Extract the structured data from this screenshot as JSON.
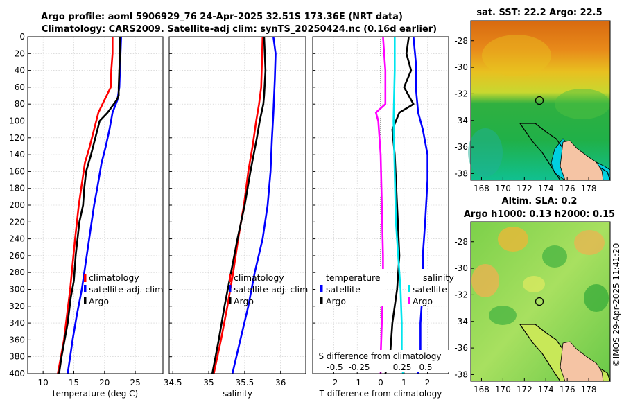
{
  "header": {
    "line1": "Argo profile: aoml 5906929_76 24-Apr-2025 32.51S 173.36E (NRT data)",
    "line2": "Climatology: CARS2009. Satellite-adj clim: synTS_20250424.nc (0.16d earlier)"
  },
  "colors": {
    "climatology": "#ff0000",
    "satellite": "#0000ff",
    "argo": "#000000",
    "t_sat": "#0000ff",
    "s_sat": "#00e5ee",
    "s_argo": "#ff00ff"
  },
  "chart_data": [
    {
      "type": "line",
      "id": "temperature",
      "xlabel": "temperature (deg C)",
      "ylabel": "",
      "xlim": [
        7.5,
        29.5
      ],
      "ylim": [
        400,
        0
      ],
      "xticks": [
        10,
        15,
        20,
        25
      ],
      "yticks": [
        0,
        20,
        40,
        60,
        80,
        100,
        120,
        140,
        160,
        180,
        200,
        220,
        240,
        260,
        280,
        300,
        320,
        340,
        360,
        380,
        400
      ],
      "legend": [
        "climatology",
        "satellite-adj. clim",
        "Argo"
      ],
      "series": [
        {
          "name": "climatology",
          "color": "#ff0000",
          "points": [
            [
              21.3,
              0
            ],
            [
              21.3,
              20
            ],
            [
              21.1,
              40
            ],
            [
              21.0,
              60
            ],
            [
              20.0,
              75
            ],
            [
              19.0,
              90
            ],
            [
              18.3,
              110
            ],
            [
              17.6,
              130
            ],
            [
              16.8,
              150
            ],
            [
              16.2,
              180
            ],
            [
              15.8,
              200
            ],
            [
              15.2,
              240
            ],
            [
              14.8,
              270
            ],
            [
              14.4,
              300
            ],
            [
              13.9,
              330
            ],
            [
              13.4,
              360
            ],
            [
              12.9,
              380
            ],
            [
              12.4,
              400
            ]
          ]
        },
        {
          "name": "satellite-adj. clim",
          "color": "#0000ff",
          "points": [
            [
              22.7,
              0
            ],
            [
              22.6,
              20
            ],
            [
              22.5,
              40
            ],
            [
              22.4,
              60
            ],
            [
              22.1,
              75
            ],
            [
              21.3,
              90
            ],
            [
              20.8,
              110
            ],
            [
              20.2,
              130
            ],
            [
              19.5,
              150
            ],
            [
              18.8,
              180
            ],
            [
              18.3,
              200
            ],
            [
              17.5,
              240
            ],
            [
              16.9,
              270
            ],
            [
              16.3,
              300
            ],
            [
              15.5,
              330
            ],
            [
              14.8,
              360
            ],
            [
              14.4,
              380
            ],
            [
              14.0,
              400
            ]
          ]
        },
        {
          "name": "Argo",
          "color": "#000000",
          "points": [
            [
              22.5,
              0
            ],
            [
              22.5,
              20
            ],
            [
              22.4,
              40
            ],
            [
              22.3,
              60
            ],
            [
              22.3,
              70
            ],
            [
              22.0,
              75
            ],
            [
              20.5,
              90
            ],
            [
              19.2,
              100
            ],
            [
              18.5,
              120
            ],
            [
              17.8,
              140
            ],
            [
              17.0,
              160
            ],
            [
              16.7,
              180
            ],
            [
              16.5,
              200
            ],
            [
              15.9,
              220
            ],
            [
              15.3,
              260
            ],
            [
              15.0,
              290
            ],
            [
              14.5,
              310
            ],
            [
              14.0,
              340
            ],
            [
              13.5,
              360
            ],
            [
              13.0,
              380
            ],
            [
              12.6,
              400
            ]
          ]
        }
      ]
    },
    {
      "type": "line",
      "id": "salinity",
      "xlabel": "salinity",
      "ylabel": "",
      "xlim": [
        34.45,
        36.35
      ],
      "xticks": [
        34.5,
        35,
        35.5,
        36
      ],
      "xticklabels": [
        "34.5",
        "35",
        "35.5",
        "36"
      ],
      "legend": [
        "climatology",
        "satellite-adj. clim",
        "Argo"
      ],
      "series": [
        {
          "name": "climatology",
          "color": "#ff0000",
          "points": [
            [
              35.75,
              0
            ],
            [
              35.74,
              30
            ],
            [
              35.73,
              60
            ],
            [
              35.7,
              80
            ],
            [
              35.66,
              100
            ],
            [
              35.61,
              130
            ],
            [
              35.55,
              160
            ],
            [
              35.49,
              200
            ],
            [
              35.41,
              240
            ],
            [
              35.34,
              280
            ],
            [
              35.26,
              320
            ],
            [
              35.17,
              360
            ],
            [
              35.07,
              400
            ]
          ]
        },
        {
          "name": "satellite-adj. clim",
          "color": "#0000ff",
          "points": [
            [
              35.9,
              0
            ],
            [
              35.93,
              20
            ],
            [
              35.92,
              50
            ],
            [
              35.9,
              90
            ],
            [
              35.88,
              120
            ],
            [
              35.86,
              160
            ],
            [
              35.82,
              200
            ],
            [
              35.75,
              240
            ],
            [
              35.64,
              280
            ],
            [
              35.55,
              320
            ],
            [
              35.44,
              360
            ],
            [
              35.33,
              400
            ]
          ]
        },
        {
          "name": "Argo",
          "color": "#000000",
          "points": [
            [
              35.77,
              0
            ],
            [
              35.78,
              20
            ],
            [
              35.79,
              40
            ],
            [
              35.77,
              70
            ],
            [
              35.76,
              80
            ],
            [
              35.71,
              100
            ],
            [
              35.67,
              120
            ],
            [
              35.58,
              160
            ],
            [
              35.5,
              200
            ],
            [
              35.4,
              240
            ],
            [
              35.31,
              280
            ],
            [
              35.22,
              320
            ],
            [
              35.14,
              360
            ],
            [
              35.05,
              400
            ]
          ]
        }
      ]
    },
    {
      "type": "line",
      "id": "difference",
      "xlabel": "T difference from climatology",
      "ylabel": "",
      "xlim": [
        -2.9,
        2.9
      ],
      "xticks": [
        -2,
        -1,
        0,
        1,
        2
      ],
      "s_axis_label": "S difference from climatology",
      "s_axis_ticks": [
        "-0.5",
        "-0.25",
        "0.25",
        "0.5"
      ],
      "legend_left": {
        "title": "temperature",
        "entries": [
          "satellite",
          "Argo"
        ]
      },
      "legend_right": {
        "title": "salinity",
        "entries": [
          "satellite",
          "Argo"
        ]
      },
      "series": [
        {
          "name": "temperature satellite",
          "color": "#0000ff",
          "points": [
            [
              1.4,
              0
            ],
            [
              1.5,
              30
            ],
            [
              1.5,
              60
            ],
            [
              1.6,
              90
            ],
            [
              1.8,
              110
            ],
            [
              2.0,
              140
            ],
            [
              2.0,
              170
            ],
            [
              1.9,
              220
            ],
            [
              1.8,
              260
            ],
            [
              1.8,
              300
            ],
            [
              1.7,
              340
            ],
            [
              1.7,
              380
            ],
            [
              1.6,
              400
            ]
          ]
        },
        {
          "name": "temperature Argo",
          "color": "#000000",
          "points": [
            [
              1.2,
              0
            ],
            [
              1.1,
              20
            ],
            [
              1.3,
              40
            ],
            [
              1.0,
              60
            ],
            [
              1.4,
              80
            ],
            [
              0.8,
              90
            ],
            [
              0.5,
              110
            ],
            [
              0.6,
              140
            ],
            [
              0.7,
              200
            ],
            [
              0.8,
              260
            ],
            [
              0.7,
              300
            ],
            [
              0.5,
              340
            ],
            [
              0.4,
              380
            ],
            [
              0.2,
              400
            ]
          ]
        },
        {
          "name": "salinity satellite",
          "color": "#00e5ee",
          "points": [
            [
              0.6,
              0
            ],
            [
              0.6,
              40
            ],
            [
              0.55,
              100
            ],
            [
              0.6,
              160
            ],
            [
              0.65,
              220
            ],
            [
              0.75,
              260
            ],
            [
              0.85,
              300
            ],
            [
              0.9,
              340
            ],
            [
              0.9,
              380
            ],
            [
              0.95,
              400
            ]
          ]
        },
        {
          "name": "salinity Argo",
          "color": "#ff00ff",
          "points": [
            [
              0.1,
              0
            ],
            [
              0.2,
              40
            ],
            [
              0.2,
              80
            ],
            [
              -0.2,
              90
            ],
            [
              -0.1,
              100
            ],
            [
              0.0,
              140
            ],
            [
              0.05,
              200
            ],
            [
              0.1,
              260
            ],
            [
              0.1,
              300
            ],
            [
              0.05,
              340
            ],
            [
              0.0,
              380
            ],
            [
              0.0,
              400
            ]
          ]
        }
      ]
    },
    {
      "type": "heatmap",
      "id": "sst_map",
      "title": "sat. SST: 22.2 Argo: 22.5",
      "xticks": [
        "168",
        "170",
        "172",
        "174",
        "176",
        "178"
      ],
      "yticks": [
        "-28",
        "-30",
        "-32",
        "-34",
        "-36",
        "-38"
      ],
      "xlim": [
        167,
        180
      ],
      "ylim": [
        -38.5,
        -26.5
      ],
      "marker": [
        173.36,
        -32.51
      ]
    },
    {
      "type": "heatmap",
      "id": "sla_map",
      "title_line1": "Altim. SLA: 0.2",
      "title_line2": "Argo h1000: 0.13 h2000: 0.15",
      "xticks": [
        "168",
        "170",
        "172",
        "174",
        "176",
        "178"
      ],
      "yticks": [
        "-28",
        "-30",
        "-32",
        "-34",
        "-36",
        "-38"
      ],
      "xlim": [
        167,
        180
      ],
      "ylim": [
        -38.5,
        -26.5
      ],
      "marker": [
        173.36,
        -32.51
      ]
    }
  ],
  "footer": {
    "credit": "©IMOS 29-Apr-2025 11:41:20"
  }
}
